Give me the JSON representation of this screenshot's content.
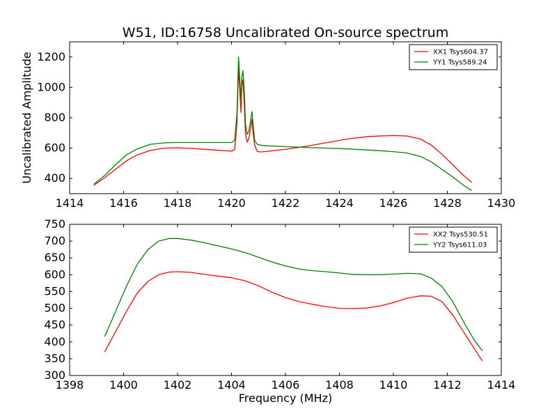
{
  "figure": {
    "title": "W51, ID:16758 Uncalibrated On-source spectrum"
  },
  "chart_data": [
    {
      "type": "line",
      "title": "W51, ID:16758 Uncalibrated On-source spectrum",
      "xlabel": "",
      "ylabel": "Uncalibrated Amplitude",
      "xlim": [
        1414,
        1430
      ],
      "ylim": [
        300,
        1300
      ],
      "xticks": [
        1414,
        1416,
        1418,
        1420,
        1422,
        1424,
        1426,
        1428,
        1430
      ],
      "yticks": [
        400,
        600,
        800,
        1000,
        1200
      ],
      "grid": false,
      "legend_position": "top-right",
      "series": [
        {
          "name": "XX1 Tsys604.37",
          "color": "#ff0000",
          "x": [
            1414.9,
            1415.3,
            1415.7,
            1416.1,
            1416.5,
            1417.0,
            1417.5,
            1418.0,
            1418.5,
            1419.0,
            1419.5,
            1420.0,
            1420.12,
            1420.2,
            1420.26,
            1420.3,
            1420.35,
            1420.38,
            1420.42,
            1420.47,
            1420.52,
            1420.58,
            1420.64,
            1420.7,
            1420.76,
            1420.8,
            1420.86,
            1420.95,
            1421.05,
            1421.3,
            1422.0,
            1422.7,
            1423.5,
            1424.3,
            1425.0,
            1425.5,
            1426.0,
            1426.5,
            1427.0,
            1427.4,
            1427.8,
            1428.2,
            1428.6,
            1428.9
          ],
          "values": [
            355,
            405,
            460,
            515,
            555,
            585,
            600,
            602,
            598,
            592,
            586,
            580,
            590,
            760,
            1130,
            1000,
            835,
            1010,
            1050,
            900,
            690,
            640,
            660,
            720,
            790,
            700,
            620,
            580,
            575,
            578,
            592,
            610,
            635,
            660,
            675,
            680,
            683,
            680,
            660,
            620,
            560,
            490,
            420,
            375
          ]
        },
        {
          "name": "YY1 Tsys589.24",
          "color": "#008000",
          "x": [
            1414.9,
            1415.3,
            1415.7,
            1416.1,
            1416.5,
            1417.0,
            1417.5,
            1418.0,
            1418.5,
            1419.0,
            1419.5,
            1420.0,
            1420.12,
            1420.2,
            1420.26,
            1420.3,
            1420.35,
            1420.38,
            1420.42,
            1420.47,
            1420.52,
            1420.58,
            1420.64,
            1420.7,
            1420.76,
            1420.8,
            1420.86,
            1420.95,
            1421.05,
            1421.3,
            1422.0,
            1422.7,
            1423.5,
            1424.3,
            1425.0,
            1425.5,
            1426.0,
            1426.5,
            1427.0,
            1427.4,
            1427.8,
            1428.2,
            1428.6,
            1428.9
          ],
          "values": [
            362,
            420,
            490,
            555,
            595,
            625,
            635,
            637,
            637,
            637,
            637,
            637,
            650,
            830,
            1200,
            1080,
            920,
            1060,
            1110,
            1000,
            760,
            690,
            710,
            770,
            840,
            760,
            650,
            625,
            620,
            615,
            610,
            605,
            600,
            595,
            588,
            583,
            577,
            568,
            545,
            510,
            460,
            410,
            355,
            320
          ]
        }
      ]
    },
    {
      "type": "line",
      "title": "",
      "xlabel": "Frequency (MHz)",
      "ylabel": "",
      "xlim": [
        1398,
        1414
      ],
      "ylim": [
        300,
        750
      ],
      "xticks": [
        1398,
        1400,
        1402,
        1404,
        1406,
        1408,
        1410,
        1412,
        1414
      ],
      "yticks": [
        300,
        350,
        400,
        450,
        500,
        550,
        600,
        650,
        700,
        750
      ],
      "grid": false,
      "legend_position": "top-right",
      "series": [
        {
          "name": "XX2 Tsys530.51",
          "color": "#ff0000",
          "x": [
            1399.3,
            1399.7,
            1400.1,
            1400.5,
            1400.9,
            1401.3,
            1401.7,
            1402.0,
            1402.5,
            1403.0,
            1403.5,
            1404.0,
            1404.5,
            1405.0,
            1405.5,
            1406.0,
            1406.5,
            1407.0,
            1407.5,
            1408.0,
            1408.5,
            1409.0,
            1409.5,
            1410.0,
            1410.5,
            1411.0,
            1411.4,
            1411.8,
            1412.2,
            1412.6,
            1413.0,
            1413.3
          ],
          "values": [
            370,
            430,
            490,
            545,
            580,
            600,
            608,
            609,
            607,
            601,
            596,
            591,
            582,
            567,
            548,
            532,
            520,
            512,
            505,
            500,
            499,
            501,
            507,
            517,
            530,
            537,
            536,
            520,
            480,
            430,
            380,
            343
          ]
        },
        {
          "name": "YY2 Tsys611.03",
          "color": "#008000",
          "x": [
            1399.3,
            1399.7,
            1400.1,
            1400.5,
            1400.9,
            1401.3,
            1401.7,
            1402.0,
            1402.5,
            1403.0,
            1403.5,
            1404.0,
            1404.5,
            1405.0,
            1405.5,
            1406.0,
            1406.5,
            1407.0,
            1407.5,
            1408.0,
            1408.5,
            1409.0,
            1409.5,
            1410.0,
            1410.5,
            1411.0,
            1411.4,
            1411.8,
            1412.2,
            1412.6,
            1413.0,
            1413.3
          ],
          "values": [
            416,
            490,
            565,
            630,
            675,
            700,
            708,
            708,
            703,
            695,
            686,
            677,
            666,
            652,
            638,
            626,
            617,
            612,
            609,
            605,
            601,
            600,
            600,
            602,
            604,
            603,
            590,
            565,
            520,
            460,
            405,
            373
          ]
        }
      ]
    }
  ]
}
